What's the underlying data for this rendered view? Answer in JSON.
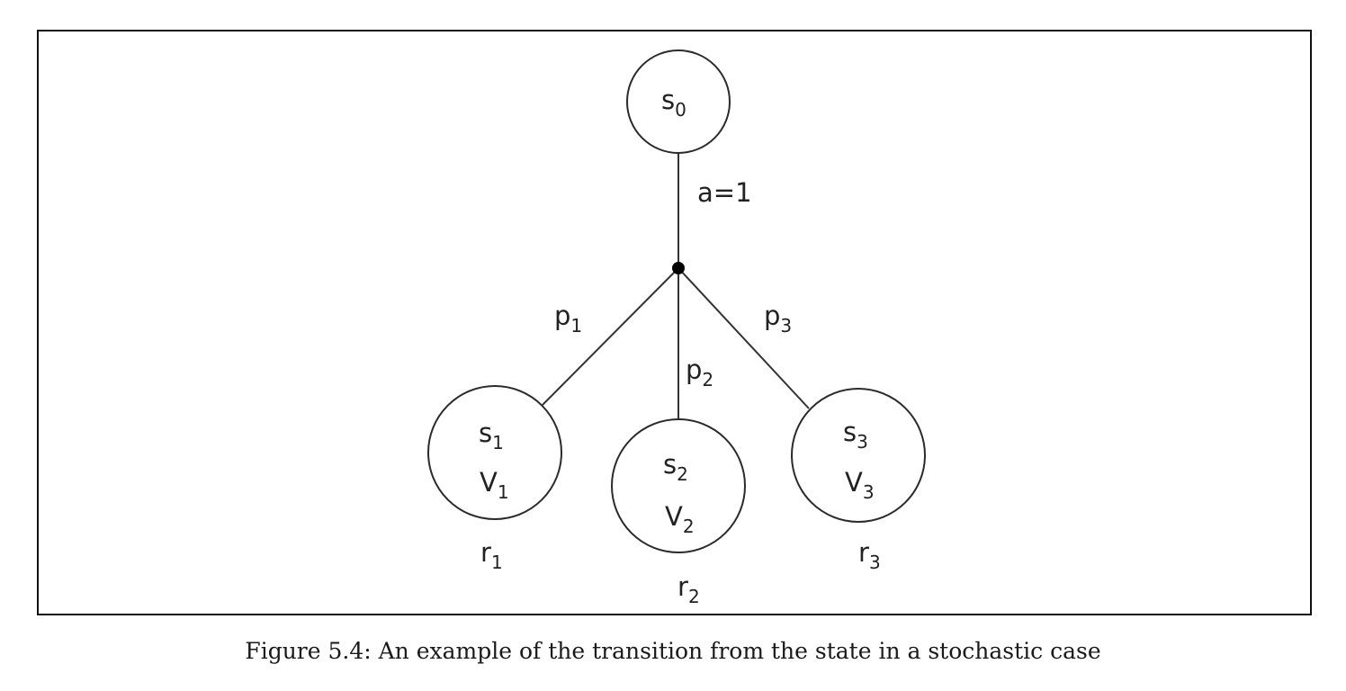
{
  "diagram": {
    "root": {
      "base": "s",
      "sub": "0"
    },
    "action_label": "a=1",
    "branches": [
      {
        "prob": {
          "base": "p",
          "sub": "1"
        },
        "state": {
          "base": "s",
          "sub": "1"
        },
        "value": {
          "base": "V",
          "sub": "1"
        },
        "reward": {
          "base": "r",
          "sub": "1"
        }
      },
      {
        "prob": {
          "base": "p",
          "sub": "2"
        },
        "state": {
          "base": "s",
          "sub": "2"
        },
        "value": {
          "base": "V",
          "sub": "2"
        },
        "reward": {
          "base": "r",
          "sub": "2"
        }
      },
      {
        "prob": {
          "base": "p",
          "sub": "3"
        },
        "state": {
          "base": "s",
          "sub": "3"
        },
        "value": {
          "base": "V",
          "sub": "3"
        },
        "reward": {
          "base": "r",
          "sub": "3"
        }
      }
    ]
  },
  "caption": "Figure 5.4: An example of the transition from the state in a stochastic case"
}
